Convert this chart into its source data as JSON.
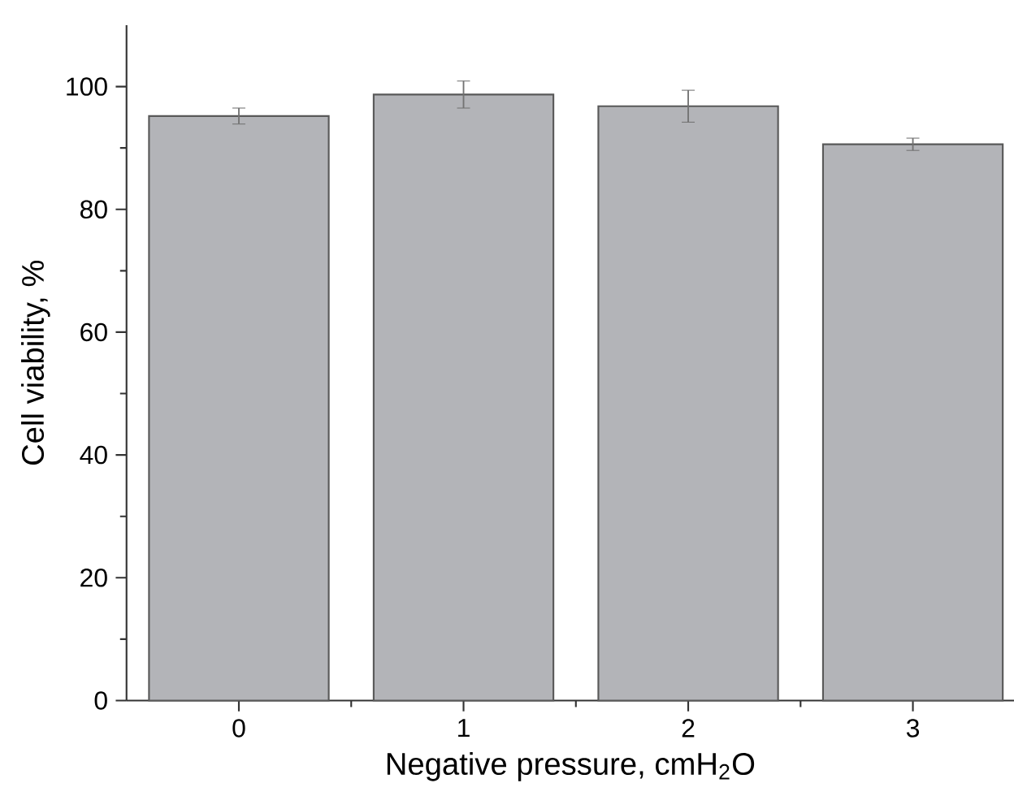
{
  "chart_data": {
    "type": "bar",
    "xlabel": "Negative pressure, cmH$_{2}$O",
    "ylabel": "Cell viability, %",
    "categories": [
      "0",
      "1",
      "2",
      "3"
    ],
    "values": [
      95.2,
      98.7,
      96.8,
      90.6
    ],
    "errors": [
      1.3,
      2.2,
      2.6,
      1.0
    ],
    "color": "#b3b4b8",
    "ylim": [
      0,
      110
    ],
    "yticks": [
      0,
      20,
      40,
      60,
      80,
      100
    ],
    "grid": false
  }
}
